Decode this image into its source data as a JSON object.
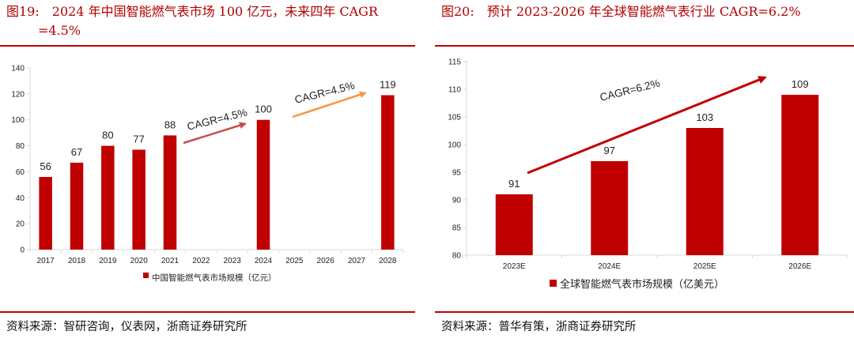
{
  "charts": [
    {
      "figure_no": "图19:",
      "title_line1": "2024 年中国智能燃气表市场 100 亿元，未来四年 CAGR",
      "title_line2": "=4.5%",
      "source": "资料来源：智研咨询，仪表网，浙商证券研究所",
      "annotation_1": "CAGR=4.5%",
      "annotation_2": "CAGR=4.5%",
      "colors": {
        "bar": "#c00000",
        "arrow1": "#c0504d",
        "arrow2": "#f79646",
        "axis": "#d9d9d9"
      }
    },
    {
      "figure_no": "图20:",
      "title_line1": "预计 2023-2026 年全球智能燃气表行业 CAGR=6.2%",
      "source": "资料来源：普华有策，浙商证券研究所",
      "annotation_1": "CAGR=6.2%",
      "colors": {
        "bar": "#c00000",
        "arrow": "#c00000",
        "axis": "#d9d9d9"
      }
    }
  ],
  "chart_data": [
    {
      "type": "bar",
      "categories": [
        "2017",
        "2018",
        "2019",
        "2020",
        "2021",
        "2022",
        "2023",
        "2024",
        "2025",
        "2026",
        "2027",
        "2028"
      ],
      "series": [
        {
          "name": "中国智能燃气表市场规模（亿元）",
          "values": [
            56,
            67,
            80,
            77,
            88,
            null,
            null,
            100,
            null,
            null,
            null,
            119
          ]
        }
      ],
      "ylim": [
        0,
        140
      ],
      "yticks": [
        "0",
        "20",
        "40",
        "60",
        "80",
        "100",
        "120",
        "140"
      ],
      "legend_position": "bottom",
      "grid": false
    },
    {
      "type": "bar",
      "categories": [
        "2023E",
        "2024E",
        "2025E",
        "2026E"
      ],
      "series": [
        {
          "name": "全球智能燃气表市场规模（亿美元）",
          "values": [
            91,
            97,
            103,
            109
          ]
        }
      ],
      "ylim": [
        80,
        115
      ],
      "yticks": [
        "80",
        "85",
        "90",
        "95",
        "100",
        "105",
        "110",
        "115"
      ],
      "legend_position": "bottom",
      "grid": false
    }
  ]
}
